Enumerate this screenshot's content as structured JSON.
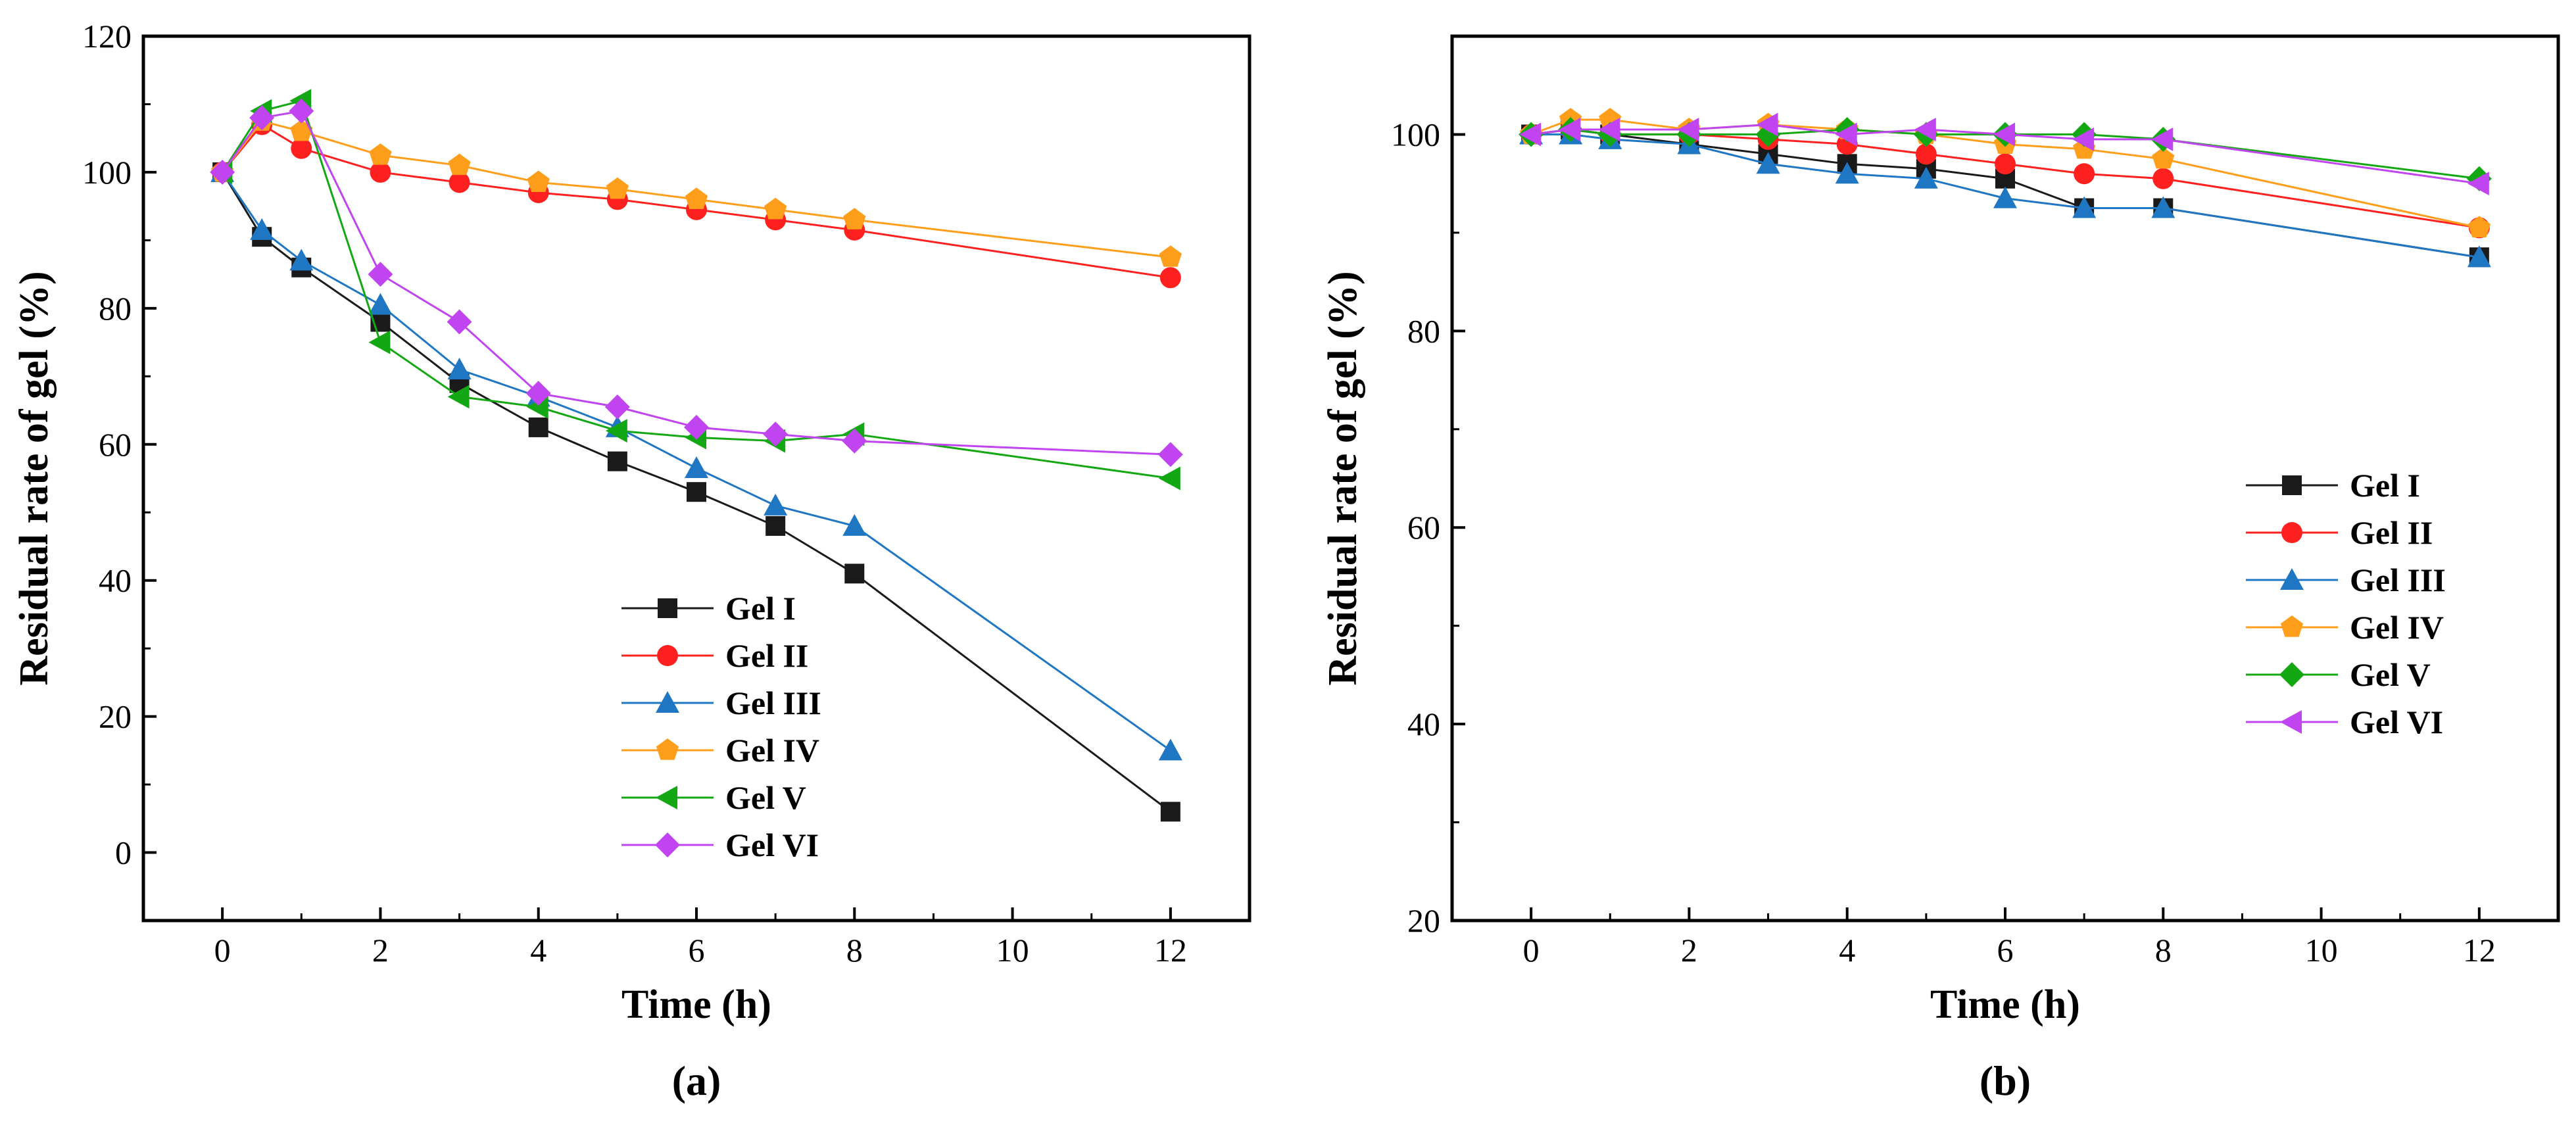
{
  "chart_data": [
    {
      "type": "line",
      "panel_label": "(a)",
      "xlabel": "Time (h)",
      "ylabel": "Residual rate of gel (%)",
      "xlim": [
        -1,
        13
      ],
      "ylim": [
        -10,
        120
      ],
      "xticks": [
        0,
        2,
        4,
        6,
        8,
        10,
        12
      ],
      "yticks": [
        0,
        20,
        40,
        60,
        80,
        100,
        120
      ],
      "legend_position": "lower-center",
      "series": [
        {
          "name": "Gel I",
          "color": "#1a1a1a",
          "marker": "square",
          "x": [
            0,
            0.5,
            1,
            2,
            3,
            4,
            5,
            6,
            7,
            8,
            12
          ],
          "y": [
            100,
            90.5,
            86,
            78,
            69,
            62.5,
            57.5,
            53,
            48,
            41,
            6
          ]
        },
        {
          "name": "Gel II",
          "color": "#ff2020",
          "marker": "circle",
          "x": [
            0,
            0.5,
            1,
            2,
            3,
            4,
            5,
            6,
            7,
            8,
            12
          ],
          "y": [
            100,
            107,
            103.5,
            100,
            98.5,
            97,
            96,
            94.5,
            93,
            91.5,
            84.5
          ]
        },
        {
          "name": "Gel III",
          "color": "#1f77c4",
          "marker": "triangle-up",
          "x": [
            0,
            0.5,
            1,
            2,
            3,
            4,
            5,
            6,
            7,
            8,
            12
          ],
          "y": [
            100,
            91.5,
            87,
            80.5,
            71,
            67,
            62.5,
            56.5,
            51,
            48,
            15
          ]
        },
        {
          "name": "Gel IV",
          "color": "#ff9e1b",
          "marker": "pentagon",
          "x": [
            0,
            0.5,
            1,
            2,
            3,
            4,
            5,
            6,
            7,
            8,
            12
          ],
          "y": [
            100,
            107.5,
            106,
            102.5,
            101,
            98.5,
            97.5,
            96,
            94.5,
            93,
            87.5
          ]
        },
        {
          "name": "Gel V",
          "color": "#13a813",
          "marker": "triangle-left",
          "x": [
            0,
            0.5,
            1,
            2,
            3,
            4,
            5,
            6,
            7,
            8,
            12
          ],
          "y": [
            100,
            109,
            110.5,
            75,
            67,
            65.5,
            62,
            61,
            60.5,
            61.5,
            55
          ]
        },
        {
          "name": "Gel VI",
          "color": "#c044f0",
          "marker": "diamond",
          "x": [
            0,
            0.5,
            1,
            2,
            3,
            4,
            5,
            6,
            7,
            8,
            12
          ],
          "y": [
            100,
            108,
            109,
            85,
            78,
            67.5,
            65.5,
            62.5,
            61.5,
            60.5,
            58.5
          ]
        }
      ]
    },
    {
      "type": "line",
      "panel_label": "(b)",
      "xlabel": "Time (h)",
      "ylabel": "Residual rate of gel (%)",
      "xlim": [
        -1,
        13
      ],
      "ylim": [
        20,
        110
      ],
      "xticks": [
        0,
        2,
        4,
        6,
        8,
        10,
        12
      ],
      "yticks": [
        20,
        40,
        60,
        80,
        100
      ],
      "legend_position": "right-center",
      "series": [
        {
          "name": "Gel I",
          "color": "#1a1a1a",
          "marker": "square",
          "x": [
            0,
            0.5,
            1,
            2,
            3,
            4,
            5,
            6,
            7,
            8,
            12
          ],
          "y": [
            100,
            100.5,
            100,
            99,
            98,
            97,
            96.5,
            95.5,
            92.5,
            92.5,
            87.5
          ]
        },
        {
          "name": "Gel II",
          "color": "#ff2020",
          "marker": "circle",
          "x": [
            0,
            0.5,
            1,
            2,
            3,
            4,
            5,
            6,
            7,
            8,
            12
          ],
          "y": [
            100,
            100.5,
            100,
            100,
            99.5,
            99,
            98,
            97,
            96,
            95.5,
            90.5
          ]
        },
        {
          "name": "Gel III",
          "color": "#1f77c4",
          "marker": "triangle-up",
          "x": [
            0,
            0.5,
            1,
            2,
            3,
            4,
            5,
            6,
            7,
            8,
            12
          ],
          "y": [
            100,
            100,
            99.5,
            99,
            97,
            96,
            95.5,
            93.5,
            92.5,
            92.5,
            87.5
          ]
        },
        {
          "name": "Gel IV",
          "color": "#ff9e1b",
          "marker": "pentagon",
          "x": [
            0,
            0.5,
            1,
            2,
            3,
            4,
            5,
            6,
            7,
            8,
            12
          ],
          "y": [
            100,
            101.5,
            101.5,
            100.5,
            101,
            100.5,
            100,
            99,
            98.5,
            97.5,
            90.5
          ]
        },
        {
          "name": "Gel V",
          "color": "#13a813",
          "marker": "diamond",
          "x": [
            0,
            0.5,
            1,
            2,
            3,
            4,
            5,
            6,
            7,
            8,
            12
          ],
          "y": [
            100,
            100.5,
            100,
            100,
            100,
            100.5,
            100,
            100,
            100,
            99.5,
            95.5
          ]
        },
        {
          "name": "Gel VI",
          "color": "#c044f0",
          "marker": "triangle-left",
          "x": [
            0,
            0.5,
            1,
            2,
            3,
            4,
            5,
            6,
            7,
            8,
            12
          ],
          "y": [
            100,
            100.5,
            100.5,
            100.5,
            101,
            100,
            100.5,
            100,
            99.5,
            99.5,
            95
          ]
        }
      ]
    }
  ]
}
